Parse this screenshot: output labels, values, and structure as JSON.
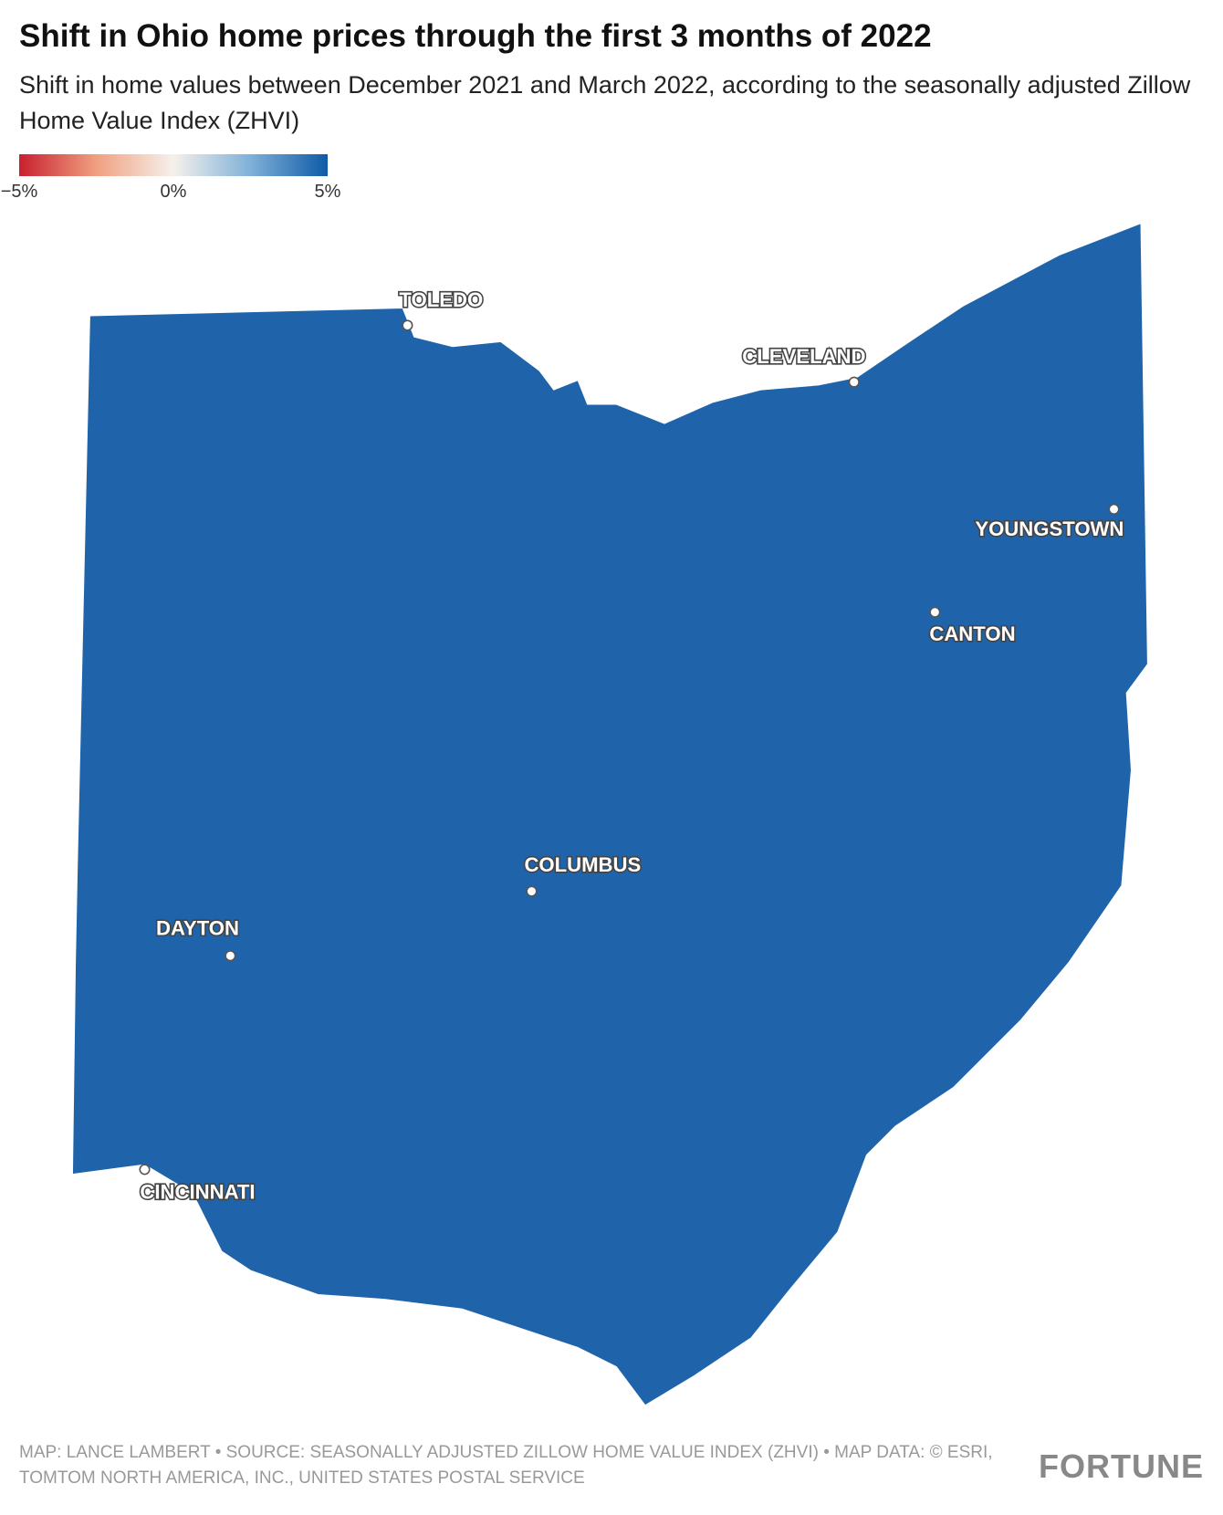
{
  "header": {
    "title": "Shift in Ohio home prices through the first 3 months of 2022",
    "subtitle": "Shift in home values between December 2021 and March 2022, according to the seasonally adjusted Zillow Home Value Index (ZHVI)"
  },
  "legend": {
    "range": [
      -5,
      5
    ],
    "colors": [
      "#c8202f",
      "#f0a080",
      "#f5f1ec",
      "#7fb0d8",
      "#0e5aa7"
    ],
    "ticks": [
      {
        "value": -5,
        "label": "−5%"
      },
      {
        "value": 0,
        "label": "0%"
      },
      {
        "value": 5,
        "label": "5%"
      }
    ]
  },
  "map": {
    "fill": "#1f64ab",
    "cities": [
      "TOLEDO",
      "CLEVELAND",
      "YOUNGSTOWN",
      "CANTON",
      "COLUMBUS",
      "DAYTON",
      "CINCINNATI"
    ]
  },
  "footer": {
    "source": "MAP: LANCE LAMBERT • SOURCE: SEASONALLY ADJUSTED ZILLOW HOME VALUE INDEX (ZHVI) • MAP DATA: © ESRI, TOMTOM NORTH AMERICA, INC., UNITED STATES POSTAL SERVICE",
    "logo": "FORTUNE"
  }
}
